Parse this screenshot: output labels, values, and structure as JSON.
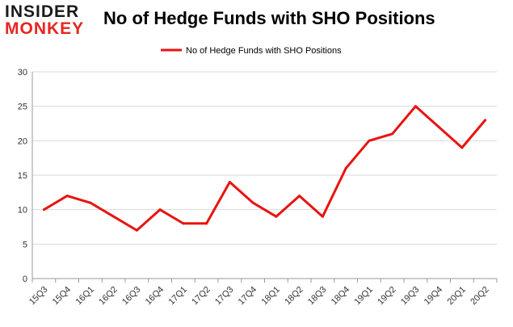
{
  "logo": {
    "line1": "INSIDER",
    "line2": "MONKEY"
  },
  "colors": {
    "line": "#e8130f",
    "grid": "#d9d9d9",
    "axis": "#999999"
  },
  "chart_data": {
    "type": "line",
    "title": "No of Hedge Funds with SHO Positions",
    "xlabel": "",
    "ylabel": "",
    "categories": [
      "15Q3",
      "15Q4",
      "16Q1",
      "16Q2",
      "16Q3",
      "16Q4",
      "17Q1",
      "17Q2",
      "17Q3",
      "17Q4",
      "18Q1",
      "18Q2",
      "18Q3",
      "18Q4",
      "19Q1",
      "19Q2",
      "19Q3",
      "19Q4",
      "20Q1",
      "20Q2"
    ],
    "series": [
      {
        "name": "No of Hedge Funds with SHO Positions",
        "values": [
          10,
          12,
          11,
          9,
          7,
          10,
          8,
          8,
          14,
          11,
          9,
          12,
          9,
          16,
          20,
          21,
          25,
          22,
          19,
          23
        ]
      }
    ],
    "ylim": [
      0,
      30
    ],
    "yticks": [
      0,
      5,
      10,
      15,
      20,
      25,
      30
    ],
    "grid": true,
    "legend": "top-center"
  }
}
